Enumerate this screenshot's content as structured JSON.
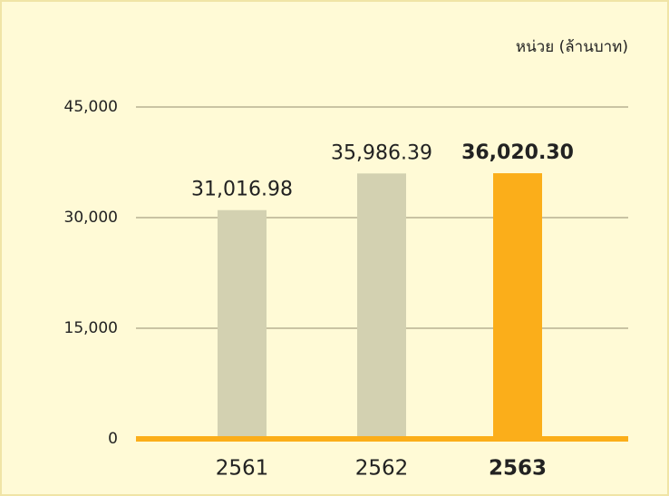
{
  "chart_data": {
    "type": "bar",
    "subtitle": "หน่วย (ล้านบาท)",
    "categories": [
      "2561",
      "2562",
      "2563"
    ],
    "values": [
      31016.98,
      35986.39,
      36020.3
    ],
    "value_labels": [
      "31,016.98",
      "35,986.39",
      "36,020.30"
    ],
    "colors": [
      "#d3d1b1",
      "#d3d1b1",
      "#fbae1a"
    ],
    "bold": [
      false,
      false,
      true
    ],
    "ylim": [
      0,
      45000
    ],
    "yticks": [
      0,
      {
        "value": 15000,
        "label": "15,000"
      },
      {
        "value": 30000,
        "label": "30,000"
      },
      {
        "value": 45000,
        "label": "45,000"
      }
    ],
    "grid": true,
    "grid_color": "#c9c3a3",
    "baseline_color": "#fbae1a"
  }
}
